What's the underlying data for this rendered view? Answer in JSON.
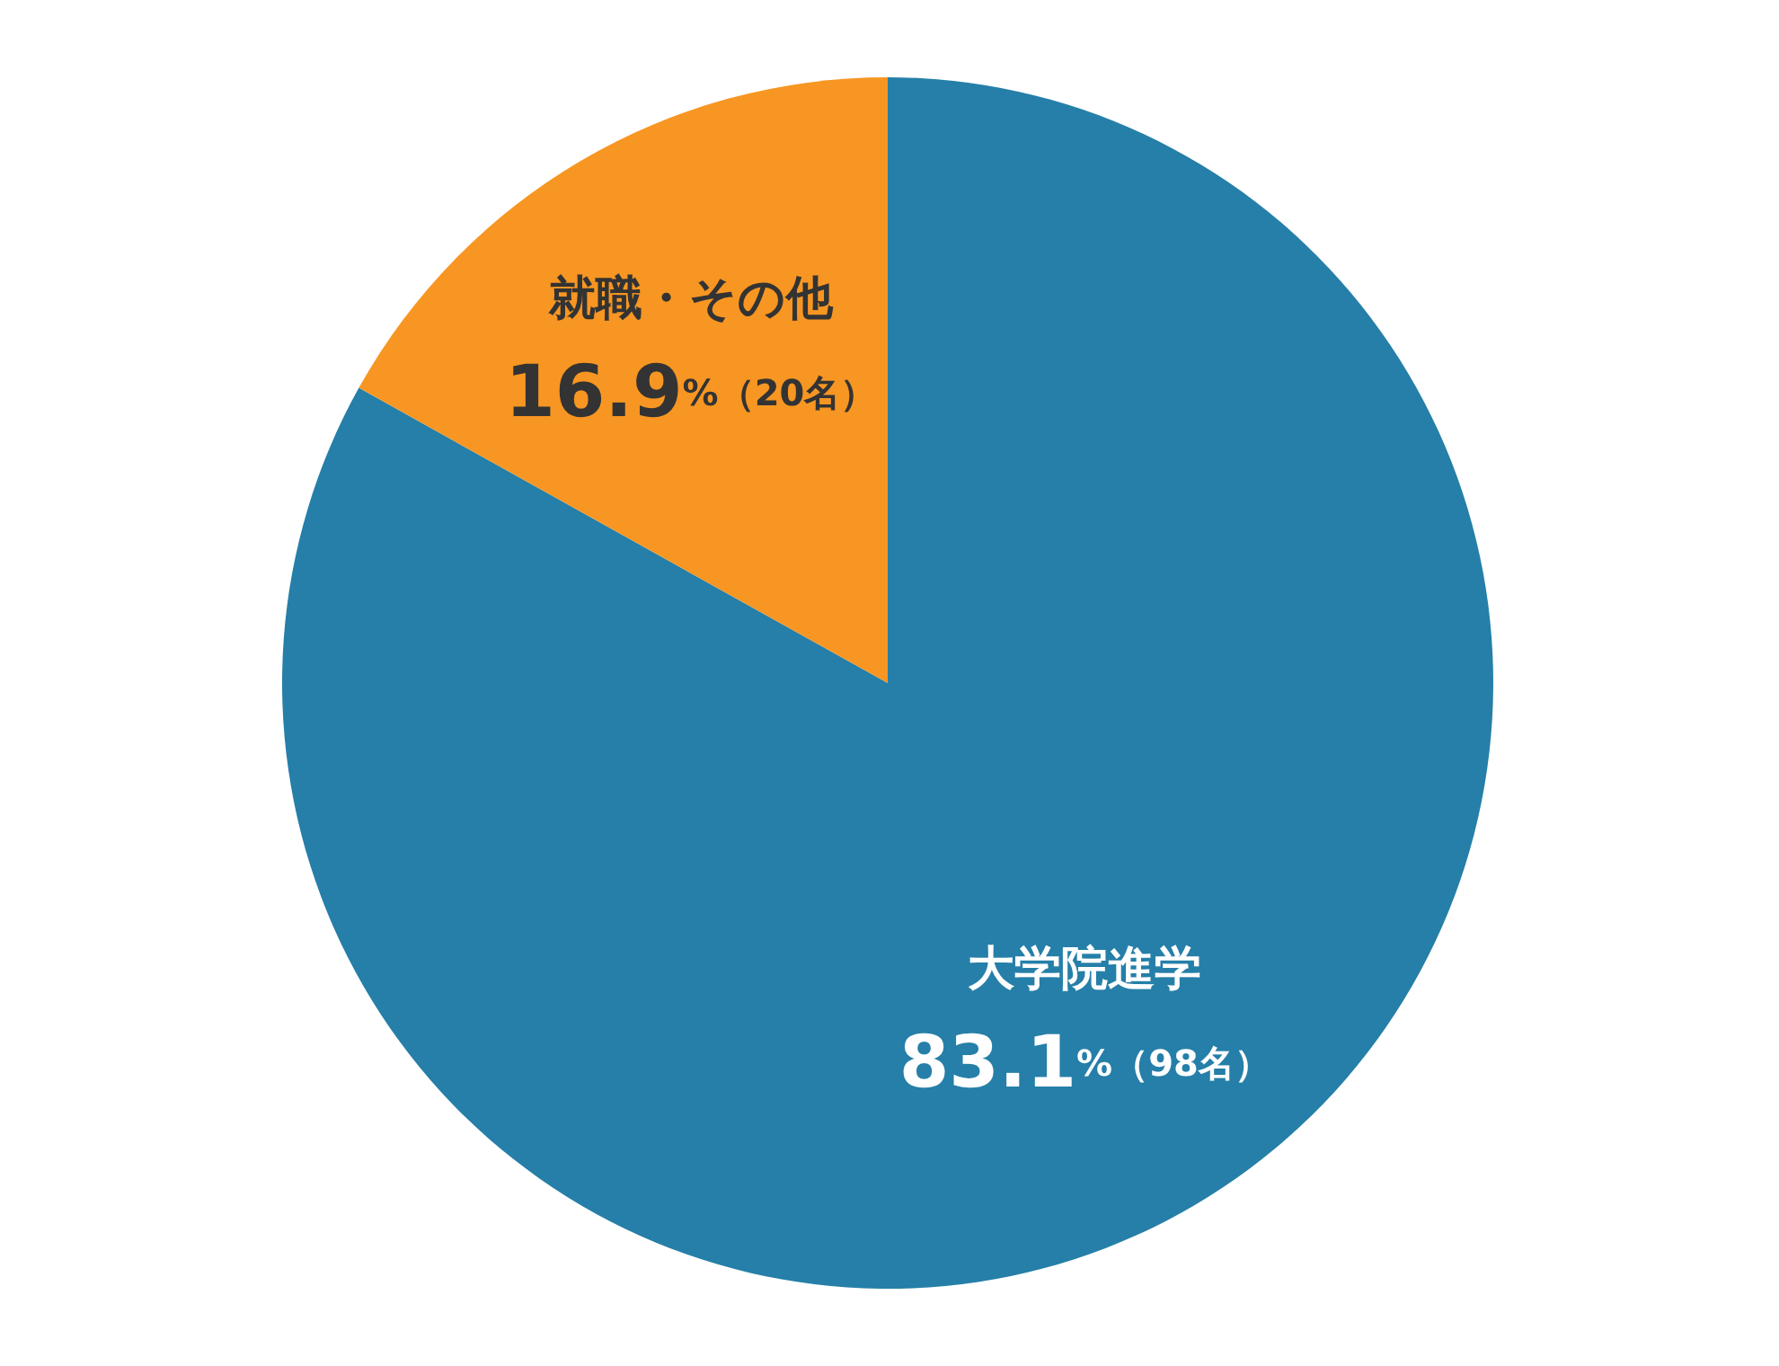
{
  "chart_data": {
    "type": "pie",
    "categories": [
      "大学院進学",
      "就職・その他"
    ],
    "values": [
      83.1,
      16.9
    ],
    "colors": [
      "#257fa8",
      "#f79622"
    ],
    "value_labels": [
      "83.1%（98名）",
      "16.9%（20名）"
    ],
    "legend": false
  }
}
